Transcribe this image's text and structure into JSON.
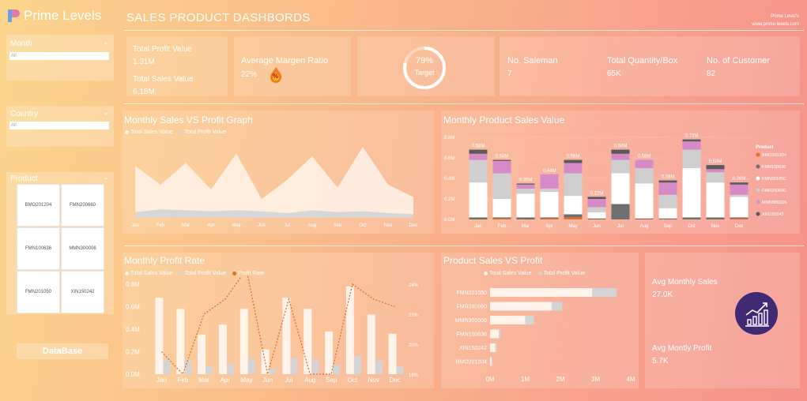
{
  "header": {
    "brand": "Prime Levels",
    "title": "SALES PRODUCT DASHBORDS",
    "corner_line1": "Prime Level's",
    "corner_line2": "www.prime-levels.com"
  },
  "sidebar": {
    "month_label": "Month",
    "month_value": "All",
    "country_label": "Country",
    "country_value": "All",
    "product_label": "Product",
    "products": [
      "BMO201204",
      "FMN200660",
      "FMN100636",
      "MMN300006",
      "FMN201050",
      "XIN150242"
    ],
    "database_button": "DataBase"
  },
  "kpis": {
    "total_profit_label": "Total Profit Value",
    "total_profit_value": "1.31M",
    "total_sales_label": "Total Sales Value",
    "total_sales_value": "6.18M",
    "avg_margin_label": "Average Margen Ratio",
    "avg_margin_value": "22%",
    "margin_badge": "%",
    "target_pct": "79%",
    "target_label": "Target",
    "target_fraction": 0.79,
    "saleman_label": "No. Saleman",
    "saleman_value": "7",
    "quantity_label": "Total Quantity/Box",
    "quantity_value": "65K",
    "customer_label": "No. of Customer",
    "customer_value": "82",
    "avg_monthly_sales_label": "Avg Monthly Sales",
    "avg_monthly_sales_value": "27.0K",
    "avg_monthly_profit_label": "Avg Montly Profit",
    "avg_monthly_profit_value": "5.7K",
    "chart_icon": "growth-chart-icon"
  },
  "colors": {
    "sales_series": "#fff3ea",
    "profit_series": "#d4d4d4",
    "profit_rate": "#e0702a",
    "icon_circle": "#3f2a73"
  },
  "chart_data": [
    {
      "id": "sales-vs-profit",
      "type": "area",
      "title": "Monthly Sales VS Profit Graph",
      "categories": [
        "Jan",
        "Feb",
        "Mar",
        "Apr",
        "May",
        "Jun",
        "Jul",
        "Aug",
        "Sep",
        "Oct",
        "Nov",
        "Dec"
      ],
      "series": [
        {
          "name": "Total Sales Value",
          "values": [
            0.55,
            0.35,
            0.58,
            0.3,
            0.68,
            0.2,
            0.4,
            0.65,
            0.32,
            0.75,
            0.35,
            0.22
          ]
        },
        {
          "name": "Total Profit Value",
          "values": [
            0.06,
            0.09,
            0.08,
            0.07,
            0.08,
            0.07,
            0.05,
            0.08,
            0.06,
            0.07,
            0.05,
            0.04
          ]
        }
      ],
      "ylim": [
        0,
        0.8
      ]
    },
    {
      "id": "monthly-product-sales",
      "type": "bar",
      "title": "Monthly Product Sales Value",
      "categories": [
        "Jan",
        "Feb",
        "Mar",
        "Apr",
        "May",
        "Jun",
        "Jul",
        "Aug",
        "Sep",
        "Oct",
        "Nov",
        "Dec"
      ],
      "totals": [
        0.68,
        0.58,
        0.35,
        0.44,
        0.58,
        0.22,
        0.68,
        0.58,
        0.38,
        0.78,
        0.53,
        0.36
      ],
      "total_labels": [
        "0.68M",
        "0.58M",
        "0.35M",
        "0.44M",
        "0.58M",
        "0.22M",
        "0.68M",
        "0.58M",
        "0.38M",
        "0.78M",
        "0.53M",
        "0.36M"
      ],
      "yticks": [
        "0.0M",
        "0.2M",
        "0.4M",
        "0.6M",
        "0.8M"
      ],
      "ylim": [
        0,
        0.8
      ],
      "series": [
        {
          "name": "BMO201204",
          "color": "#e0702a",
          "values": [
            0,
            0.01,
            0,
            0.01,
            0.02,
            0,
            0,
            0,
            0,
            0,
            0,
            0.01
          ]
        },
        {
          "name": "FMN100636",
          "color": "#6f6f6f",
          "values": [
            0.02,
            0.01,
            0.02,
            0.01,
            0.03,
            0.01,
            0.15,
            0.01,
            0.01,
            0.02,
            0.02,
            0.01
          ]
        },
        {
          "name": "FMN201050",
          "color": "#ffffff",
          "values": [
            0.34,
            0.18,
            0.23,
            0.25,
            0.18,
            0.06,
            0.3,
            0.34,
            0.1,
            0.48,
            0.34,
            0.2
          ]
        },
        {
          "name": "FMR200660",
          "color": "#cfcfcf",
          "values": [
            0.22,
            0.25,
            0.05,
            0.03,
            0.22,
            0.05,
            0.13,
            0.15,
            0.13,
            0.18,
            0.1,
            0.02
          ]
        },
        {
          "name": "MMN300006",
          "color": "#d68ac8",
          "values": [
            0.06,
            0.12,
            0.04,
            0.14,
            0.1,
            0.08,
            0.06,
            0.08,
            0.12,
            0.08,
            0.03,
            0.1
          ]
        },
        {
          "name": "XIN150242",
          "color": "#5a5a5a",
          "values": [
            0.04,
            0.01,
            0.01,
            0,
            0.03,
            0.02,
            0.04,
            0,
            0.02,
            0.02,
            0.04,
            0.02
          ]
        }
      ],
      "legend_title": "Product",
      "legend_position": "right"
    },
    {
      "id": "monthly-profit-rate",
      "type": "bar",
      "title": "Monthly Profit Rate",
      "categories": [
        "Jan",
        "Feb",
        "Mar",
        "Apr",
        "May",
        "Jun",
        "Jul",
        "Aug",
        "Sep",
        "Oct",
        "Nov",
        "Dec"
      ],
      "series": [
        {
          "name": "Total Sales Value",
          "values": [
            0.68,
            0.58,
            0.35,
            0.44,
            0.58,
            0.22,
            0.68,
            0.58,
            0.38,
            0.78,
            0.53,
            0.36
          ]
        },
        {
          "name": "Total Profit Value",
          "values": [
            0.13,
            0.12,
            0.07,
            0.09,
            0.13,
            0.05,
            0.14,
            0.13,
            0.08,
            0.16,
            0.12,
            0.07
          ]
        },
        {
          "name": "Profit Rate",
          "values": [
            19.5,
            18.0,
            22.0,
            23.0,
            25.0,
            18.0,
            23.0,
            18.0,
            18.0,
            24.0,
            23.0,
            22.5
          ]
        }
      ],
      "yticks": [
        "0.0M",
        "0.2M",
        "0.4M",
        "0.6M",
        "0.8M"
      ],
      "ylim": [
        0,
        0.8
      ],
      "y2ticks": [
        "18%",
        "20%",
        "22%",
        "24%"
      ],
      "y2lim": [
        18,
        24
      ]
    },
    {
      "id": "product-sales-vs-profit",
      "type": "bar",
      "title": "Product Sales VS Profit",
      "categories": [
        "FMN201050",
        "FMR200660",
        "MMN300006",
        "FMN100636",
        "XIN150242",
        "BMO201204"
      ],
      "series": [
        {
          "name": "Total Sales Value",
          "values": [
            2.9,
            1.75,
            1.0,
            0.25,
            0.15,
            0.05
          ]
        },
        {
          "name": "Total Profit Value",
          "values": [
            0.7,
            0.3,
            0.25,
            0.05,
            0.04,
            0.01
          ]
        }
      ],
      "xticks": [
        "0M",
        "1M",
        "2M",
        "3M",
        "4M"
      ],
      "xlim": [
        0,
        4
      ]
    }
  ]
}
